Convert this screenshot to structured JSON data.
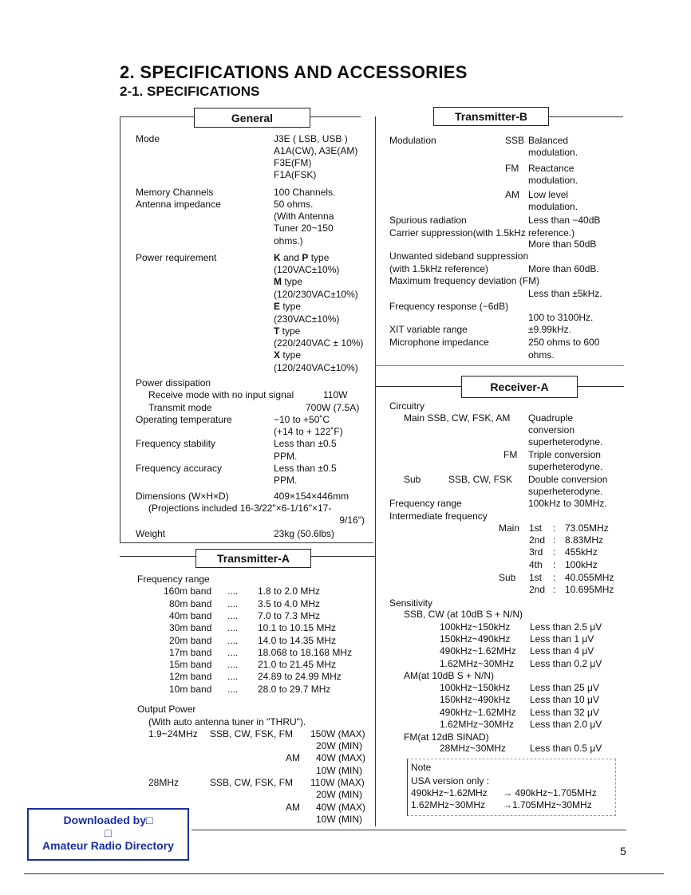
{
  "title": "2.  SPECIFICATIONS AND ACCESSORIES",
  "subtitle": "2-1.  SPECIFICATIONS",
  "page_number": "5",
  "watermark": {
    "line1": "Downloaded by□",
    "line2": "□",
    "line3": "Amateur Radio Directory",
    "color": "#1a2fa0"
  },
  "sections": {
    "general": {
      "heading": "General",
      "rows": [
        [
          "Mode",
          "J3E ( LSB, USB )"
        ],
        [
          "",
          "A1A(CW), A3E(AM)"
        ],
        [
          "",
          "F3E(FM)"
        ],
        [
          "",
          "F1A(FSK)"
        ],
        [
          "Memory Channels",
          "100 Channels."
        ],
        [
          "Antenna impedance",
          "50 ohms."
        ],
        [
          "",
          "(With Antenna"
        ],
        [
          "",
          "Tuner 20~150"
        ],
        [
          "",
          "ohms.)"
        ],
        [
          "Power requirement",
          "K and P type"
        ],
        [
          "",
          "(120VAC±10%)"
        ],
        [
          "",
          "M type"
        ],
        [
          "",
          "(120/230VAC±10%)"
        ],
        [
          "",
          "E type"
        ],
        [
          "",
          "(230VAC±10%)"
        ],
        [
          "",
          "T type"
        ],
        [
          "",
          "(220/240VAC ± 10%)"
        ],
        [
          "",
          "X type"
        ],
        [
          "",
          "(120/240VAC±10%)"
        ],
        [
          "Power dissipation"
        ],
        [
          "Receive mode with no input  signal",
          "110W"
        ],
        [
          "Transmit mode",
          "700W (7.5A)"
        ],
        [
          "Operating temperature",
          "−10 to +50˚C"
        ],
        [
          "",
          "(+14 to + 122˚F)"
        ],
        [
          "Frequency stability",
          "Less than ±0.5"
        ],
        [
          "",
          "PPM."
        ],
        [
          "Frequency accuracy",
          "Less than ±0.5"
        ],
        [
          "",
          "PPM."
        ],
        [
          "Dimensions (W×H×D)",
          "409×154×446mm"
        ],
        [
          "(Projections included 16-3/22\"×6-1/16\"×17-"
        ],
        [
          "",
          "9/16\")"
        ],
        [
          "Weight",
          "23kg (50.6lbs)"
        ]
      ]
    },
    "transmitter_a": {
      "heading": "Transmitter-A",
      "rows": [
        [
          "Frequency range"
        ],
        [
          "160m band",
          "....",
          "1.8   to  2.0 MHz"
        ],
        [
          "80m band",
          "....",
          "3.5   to  4.0 MHz"
        ],
        [
          "40m band",
          "....",
          "7.0   to  7.3 MHz"
        ],
        [
          "30m band",
          "....",
          "10.1 to 10.15 MHz"
        ],
        [
          "20m band",
          "....",
          "14.0 to 14.35 MHz"
        ],
        [
          "17m band",
          "....",
          "18.068 to 18.168 MHz"
        ],
        [
          "15m band",
          "....",
          "21.0 to 21.45 MHz"
        ],
        [
          "12m band",
          "....",
          "24.89 to 24.99 MHz"
        ],
        [
          "10m band",
          "....",
          "28.0   to  29.7 MHz"
        ],
        [
          "Output  Power"
        ],
        [
          "(With auto antenna tuner in \"THRU\")."
        ],
        [
          "1.9~24MHz",
          "SSB, CW, FSK, FM",
          "150W (MAX)"
        ],
        [
          "",
          "",
          "20W  (MIN)"
        ],
        [
          "",
          "AM",
          "40W (MAX)"
        ],
        [
          "",
          "",
          "10W  (MIN)"
        ],
        [
          "28MHz",
          "SSB, CW, FSK, FM",
          "110W  (MAX)"
        ],
        [
          "",
          "",
          "20W  (MIN)"
        ],
        [
          "",
          "AM",
          "40W (MAX)"
        ],
        [
          "",
          "",
          "10W  (MIN)"
        ]
      ]
    },
    "transmitter_b": {
      "heading": "Transmitter-B",
      "rows": [
        [
          "Modulation",
          "SSB",
          "Balanced"
        ],
        [
          "",
          "",
          "modulation."
        ],
        [
          "",
          "FM",
          "Reactance"
        ],
        [
          "",
          "",
          "modulation."
        ],
        [
          "",
          "AM",
          "Low level"
        ],
        [
          "",
          "",
          "modulation."
        ],
        [
          "Spurious radiation",
          "",
          "Less than  −40dB"
        ],
        [
          "Carrier suppression(with 1.5kHz reference.)"
        ],
        [
          "",
          "",
          "More than 50dB"
        ],
        [
          "Unwanted sideband suppression"
        ],
        [
          "(with 1.5kHz reference)",
          "",
          "More than 60dB."
        ],
        [
          "Maximum frequency deviation (FM)"
        ],
        [
          "",
          "",
          "Less than  ±5kHz."
        ],
        [
          "Frequency response (−6dB)"
        ],
        [
          "",
          "",
          "100 to 3100Hz."
        ],
        [
          "XIT variable range",
          "",
          "±9.99kHz."
        ],
        [
          "Microphone impedance",
          "",
          "250 ohms to 600"
        ],
        [
          "",
          "",
          "ohms."
        ]
      ]
    },
    "receiver_a": {
      "heading": "Receiver-A",
      "rows": [
        [
          "Circuitry"
        ],
        [
          "Main SSB, CW, FSK, AM",
          "",
          "Quadruple"
        ],
        [
          "",
          "",
          "conversion"
        ],
        [
          "",
          "",
          "superheterodyne."
        ],
        [
          "",
          "FM",
          "Triple conversion"
        ],
        [
          "",
          "",
          "superheterodyne."
        ],
        [
          "Sub",
          "SSB, CW, FSK",
          "Double conversion"
        ],
        [
          "",
          "",
          "superheterodyne."
        ],
        [
          "Frequency range",
          "",
          "100kHz to 30MHz."
        ],
        [
          "Intermediate frequency"
        ],
        [
          "Main",
          "1st",
          ":",
          "73.05MHz"
        ],
        [
          "",
          "2nd",
          ":",
          "8.83MHz"
        ],
        [
          "",
          "3rd",
          ":",
          "455kHz"
        ],
        [
          "",
          "4th",
          ":",
          "100kHz"
        ],
        [
          "Sub",
          "1st",
          ":",
          "40.055MHz"
        ],
        [
          "",
          "2nd",
          ":",
          "10.695MHz"
        ],
        [
          "Sensitivity"
        ],
        [
          "SSB, CW (at 10dB S + N/N)"
        ],
        [
          "100kHz~150kHz",
          "Less than 2.5 μV"
        ],
        [
          "150kHz~490kHz",
          "Less than 1 μV"
        ],
        [
          "490kHz~1.62MHz",
          "Less than 4 μV"
        ],
        [
          "1.62MHz~30MHz",
          "Less than 0.2 μV"
        ],
        [
          "AM(at 10dB S + N/N)"
        ],
        [
          "100kHz~150kHz",
          "Less than 25 μV"
        ],
        [
          "150kHz~490kHz",
          "Less than 10 μV"
        ],
        [
          "490kHz~1.62MHz",
          "Less than 32 μV"
        ],
        [
          "1.62MHz~30MHz",
          "Less than 2.0 μV"
        ],
        [
          "FM(at 12dB SINAD)"
        ],
        [
          "28MHz~30MHz",
          "Less than 0.5 μV"
        ]
      ]
    },
    "note": {
      "rows": [
        [
          "Note"
        ],
        [
          "USA version only :"
        ],
        [
          "490kHz~1.62MHz",
          "→  490kHz~1.705MHz"
        ],
        [
          "1.62MHz~30MHz",
          "→1.705MHz~30MHz"
        ]
      ]
    }
  }
}
